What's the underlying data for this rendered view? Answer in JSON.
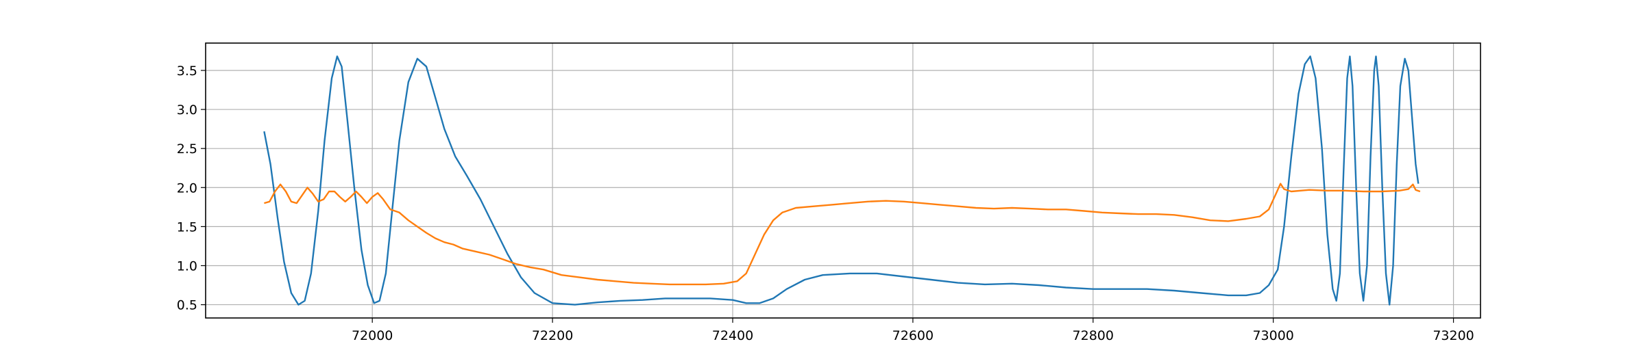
{
  "chart_data": {
    "type": "line",
    "title": "",
    "xlabel": "",
    "ylabel": "",
    "xlim": [
      71815,
      73230
    ],
    "ylim": [
      0.33,
      3.85
    ],
    "grid": true,
    "legend": "none",
    "x_ticks": [
      72000,
      72200,
      72400,
      72600,
      72800,
      73000,
      73200
    ],
    "x_tick_labels": [
      "72000",
      "72200",
      "72400",
      "72600",
      "72800",
      "73000",
      "73200"
    ],
    "y_ticks": [
      0.5,
      1.0,
      1.5,
      2.0,
      2.5,
      3.0,
      3.5
    ],
    "y_tick_labels": [
      "0.5",
      "1.0",
      "1.5",
      "2.0",
      "2.5",
      "3.0",
      "3.5"
    ],
    "series": [
      {
        "color": "#1f77b4",
        "points": [
          [
            71880,
            2.72
          ],
          [
            71887,
            2.3
          ],
          [
            71895,
            1.6
          ],
          [
            71902,
            1.05
          ],
          [
            71910,
            0.65
          ],
          [
            71918,
            0.5
          ],
          [
            71925,
            0.55
          ],
          [
            71932,
            0.9
          ],
          [
            71940,
            1.7
          ],
          [
            71947,
            2.6
          ],
          [
            71955,
            3.4
          ],
          [
            71961,
            3.68
          ],
          [
            71966,
            3.55
          ],
          [
            71972,
            2.9
          ],
          [
            71980,
            2.0
          ],
          [
            71988,
            1.2
          ],
          [
            71995,
            0.75
          ],
          [
            72002,
            0.52
          ],
          [
            72008,
            0.55
          ],
          [
            72015,
            0.9
          ],
          [
            72022,
            1.7
          ],
          [
            72030,
            2.6
          ],
          [
            72040,
            3.35
          ],
          [
            72050,
            3.65
          ],
          [
            72060,
            3.55
          ],
          [
            72070,
            3.15
          ],
          [
            72080,
            2.75
          ],
          [
            72092,
            2.4
          ],
          [
            72105,
            2.15
          ],
          [
            72120,
            1.85
          ],
          [
            72135,
            1.5
          ],
          [
            72150,
            1.15
          ],
          [
            72165,
            0.85
          ],
          [
            72180,
            0.65
          ],
          [
            72200,
            0.52
          ],
          [
            72225,
            0.5
          ],
          [
            72250,
            0.53
          ],
          [
            72275,
            0.55
          ],
          [
            72300,
            0.56
          ],
          [
            72325,
            0.58
          ],
          [
            72350,
            0.58
          ],
          [
            72375,
            0.58
          ],
          [
            72400,
            0.56
          ],
          [
            72415,
            0.52
          ],
          [
            72430,
            0.52
          ],
          [
            72445,
            0.58
          ],
          [
            72460,
            0.7
          ],
          [
            72480,
            0.82
          ],
          [
            72500,
            0.88
          ],
          [
            72530,
            0.9
          ],
          [
            72560,
            0.9
          ],
          [
            72590,
            0.86
          ],
          [
            72620,
            0.82
          ],
          [
            72650,
            0.78
          ],
          [
            72680,
            0.76
          ],
          [
            72710,
            0.77
          ],
          [
            72740,
            0.75
          ],
          [
            72770,
            0.72
          ],
          [
            72800,
            0.7
          ],
          [
            72830,
            0.7
          ],
          [
            72860,
            0.7
          ],
          [
            72890,
            0.68
          ],
          [
            72920,
            0.65
          ],
          [
            72950,
            0.62
          ],
          [
            72970,
            0.62
          ],
          [
            72985,
            0.65
          ],
          [
            72995,
            0.75
          ],
          [
            73005,
            0.95
          ],
          [
            73012,
            1.5
          ],
          [
            73020,
            2.4
          ],
          [
            73028,
            3.2
          ],
          [
            73035,
            3.58
          ],
          [
            73041,
            3.68
          ],
          [
            73047,
            3.4
          ],
          [
            73054,
            2.5
          ],
          [
            73060,
            1.4
          ],
          [
            73066,
            0.7
          ],
          [
            73070,
            0.55
          ],
          [
            73074,
            0.9
          ],
          [
            73078,
            2.2
          ],
          [
            73082,
            3.4
          ],
          [
            73085,
            3.68
          ],
          [
            73088,
            3.3
          ],
          [
            73092,
            2.0
          ],
          [
            73096,
            0.9
          ],
          [
            73100,
            0.55
          ],
          [
            73104,
            1.0
          ],
          [
            73108,
            2.4
          ],
          [
            73112,
            3.5
          ],
          [
            73114,
            3.68
          ],
          [
            73117,
            3.3
          ],
          [
            73121,
            2.0
          ],
          [
            73125,
            0.9
          ],
          [
            73129,
            0.5
          ],
          [
            73133,
            1.0
          ],
          [
            73137,
            2.3
          ],
          [
            73141,
            3.3
          ],
          [
            73146,
            3.65
          ],
          [
            73150,
            3.5
          ],
          [
            73154,
            2.9
          ],
          [
            73158,
            2.3
          ],
          [
            73161,
            2.05
          ]
        ]
      },
      {
        "color": "#ff7f0e",
        "points": [
          [
            71880,
            1.8
          ],
          [
            71886,
            1.82
          ],
          [
            71892,
            1.95
          ],
          [
            71898,
            2.04
          ],
          [
            71904,
            1.95
          ],
          [
            71910,
            1.82
          ],
          [
            71916,
            1.8
          ],
          [
            71922,
            1.9
          ],
          [
            71928,
            2.0
          ],
          [
            71934,
            1.92
          ],
          [
            71940,
            1.82
          ],
          [
            71946,
            1.85
          ],
          [
            71952,
            1.95
          ],
          [
            71958,
            1.95
          ],
          [
            71964,
            1.88
          ],
          [
            71970,
            1.82
          ],
          [
            71976,
            1.88
          ],
          [
            71982,
            1.95
          ],
          [
            71988,
            1.88
          ],
          [
            71994,
            1.8
          ],
          [
            72000,
            1.88
          ],
          [
            72006,
            1.93
          ],
          [
            72012,
            1.85
          ],
          [
            72020,
            1.72
          ],
          [
            72030,
            1.68
          ],
          [
            72040,
            1.58
          ],
          [
            72050,
            1.5
          ],
          [
            72060,
            1.42
          ],
          [
            72070,
            1.35
          ],
          [
            72080,
            1.3
          ],
          [
            72090,
            1.27
          ],
          [
            72100,
            1.22
          ],
          [
            72115,
            1.18
          ],
          [
            72130,
            1.14
          ],
          [
            72145,
            1.08
          ],
          [
            72160,
            1.02
          ],
          [
            72175,
            0.98
          ],
          [
            72190,
            0.95
          ],
          [
            72210,
            0.88
          ],
          [
            72230,
            0.85
          ],
          [
            72250,
            0.82
          ],
          [
            72270,
            0.8
          ],
          [
            72290,
            0.78
          ],
          [
            72310,
            0.77
          ],
          [
            72330,
            0.76
          ],
          [
            72350,
            0.76
          ],
          [
            72370,
            0.76
          ],
          [
            72390,
            0.77
          ],
          [
            72405,
            0.8
          ],
          [
            72415,
            0.9
          ],
          [
            72425,
            1.15
          ],
          [
            72435,
            1.4
          ],
          [
            72445,
            1.58
          ],
          [
            72455,
            1.68
          ],
          [
            72470,
            1.74
          ],
          [
            72490,
            1.76
          ],
          [
            72510,
            1.78
          ],
          [
            72530,
            1.8
          ],
          [
            72550,
            1.82
          ],
          [
            72570,
            1.83
          ],
          [
            72590,
            1.82
          ],
          [
            72610,
            1.8
          ],
          [
            72630,
            1.78
          ],
          [
            72650,
            1.76
          ],
          [
            72670,
            1.74
          ],
          [
            72690,
            1.73
          ],
          [
            72710,
            1.74
          ],
          [
            72730,
            1.73
          ],
          [
            72750,
            1.72
          ],
          [
            72770,
            1.72
          ],
          [
            72790,
            1.7
          ],
          [
            72810,
            1.68
          ],
          [
            72830,
            1.67
          ],
          [
            72850,
            1.66
          ],
          [
            72870,
            1.66
          ],
          [
            72890,
            1.65
          ],
          [
            72910,
            1.62
          ],
          [
            72930,
            1.58
          ],
          [
            72950,
            1.57
          ],
          [
            72970,
            1.6
          ],
          [
            72985,
            1.63
          ],
          [
            72995,
            1.72
          ],
          [
            73003,
            1.92
          ],
          [
            73008,
            2.05
          ],
          [
            73012,
            1.98
          ],
          [
            73020,
            1.95
          ],
          [
            73040,
            1.97
          ],
          [
            73060,
            1.96
          ],
          [
            73080,
            1.96
          ],
          [
            73100,
            1.95
          ],
          [
            73120,
            1.95
          ],
          [
            73140,
            1.96
          ],
          [
            73150,
            1.98
          ],
          [
            73155,
            2.04
          ],
          [
            73158,
            1.97
          ],
          [
            73163,
            1.95
          ]
        ]
      }
    ]
  }
}
